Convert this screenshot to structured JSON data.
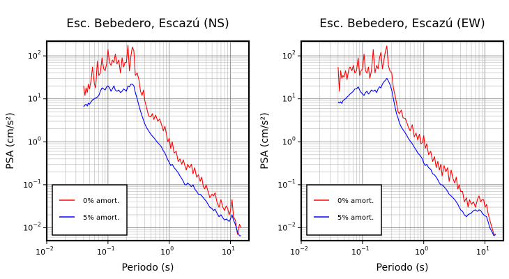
{
  "chart_data": [
    {
      "type": "line",
      "title": "Esc. Bebedero, Escazú (NS)",
      "xlabel": "Periodo (s)",
      "ylabel": "PSA (cm/s²)",
      "xscale": "log",
      "yscale": "log",
      "xlim": [
        0.01,
        20
      ],
      "ylim": [
        0.005,
        220
      ],
      "xticks": [
        {
          "base": "10",
          "exp": "−2"
        },
        {
          "base": "10",
          "exp": "−1"
        },
        {
          "base": "10",
          "exp": "0"
        },
        {
          "base": "10",
          "exp": "1"
        }
      ],
      "yticks": [
        {
          "base": "10",
          "exp": "−2"
        },
        {
          "base": "10",
          "exp": "−1"
        },
        {
          "base": "10",
          "exp": "0"
        },
        {
          "base": "10",
          "exp": "1"
        },
        {
          "base": "10",
          "exp": "2"
        }
      ],
      "grid": true,
      "legend_position": "bottom-left",
      "series": [
        {
          "name": "0% amort.",
          "color": "#ff0000",
          "x": [
            0.04,
            0.042,
            0.044,
            0.046,
            0.048,
            0.05,
            0.053,
            0.056,
            0.06,
            0.063,
            0.067,
            0.071,
            0.075,
            0.08,
            0.085,
            0.09,
            0.095,
            0.1,
            0.106,
            0.112,
            0.118,
            0.125,
            0.132,
            0.14,
            0.15,
            0.16,
            0.17,
            0.18,
            0.19,
            0.2,
            0.212,
            0.224,
            0.237,
            0.25,
            0.265,
            0.28,
            0.3,
            0.32,
            0.34,
            0.36,
            0.38,
            0.4,
            0.43,
            0.46,
            0.5,
            0.53,
            0.56,
            0.6,
            0.65,
            0.7,
            0.75,
            0.8,
            0.85,
            0.9,
            0.95,
            1.0,
            1.06,
            1.12,
            1.2,
            1.3,
            1.4,
            1.5,
            1.6,
            1.7,
            1.8,
            1.9,
            2.0,
            2.15,
            2.3,
            2.45,
            2.6,
            2.8,
            3.0,
            3.2,
            3.4,
            3.6,
            3.8,
            4.0,
            4.3,
            4.6,
            5.0,
            5.3,
            5.6,
            6.0,
            6.5,
            7.0,
            7.5,
            8.0,
            8.5,
            9.0,
            9.5,
            10.0,
            10.6,
            11.2,
            12.0,
            13.0,
            14.0,
            15.0
          ],
          "y": [
            20,
            12,
            18,
            14,
            22,
            17,
            27,
            55,
            22,
            18,
            75,
            35,
            40,
            90,
            50,
            45,
            65,
            140,
            70,
            60,
            80,
            70,
            110,
            65,
            80,
            40,
            90,
            55,
            70,
            70,
            180,
            45,
            100,
            160,
            130,
            35,
            40,
            28,
            15,
            12,
            16,
            9,
            6,
            4,
            3.8,
            4.5,
            3.3,
            4.2,
            3.0,
            3.4,
            2.5,
            1.8,
            2.3,
            1.5,
            1.0,
            1.2,
            0.7,
            1.0,
            0.55,
            0.6,
            0.35,
            0.4,
            0.3,
            0.38,
            0.28,
            0.22,
            0.3,
            0.25,
            0.3,
            0.18,
            0.25,
            0.15,
            0.17,
            0.12,
            0.15,
            0.09,
            0.08,
            0.1,
            0.07,
            0.05,
            0.06,
            0.055,
            0.065,
            0.04,
            0.03,
            0.045,
            0.03,
            0.025,
            0.032,
            0.028,
            0.02,
            0.025,
            0.045,
            0.018,
            0.015,
            0.007,
            0.012,
            0.01
          ]
        },
        {
          "name": "5% amort.",
          "color": "#0000ff",
          "x": [
            0.04,
            0.042,
            0.044,
            0.046,
            0.048,
            0.05,
            0.053,
            0.056,
            0.06,
            0.063,
            0.067,
            0.071,
            0.075,
            0.08,
            0.085,
            0.09,
            0.095,
            0.1,
            0.106,
            0.112,
            0.118,
            0.125,
            0.132,
            0.14,
            0.15,
            0.16,
            0.17,
            0.18,
            0.19,
            0.2,
            0.212,
            0.224,
            0.237,
            0.25,
            0.265,
            0.28,
            0.3,
            0.32,
            0.34,
            0.36,
            0.38,
            0.4,
            0.43,
            0.46,
            0.5,
            0.53,
            0.56,
            0.6,
            0.65,
            0.7,
            0.75,
            0.8,
            0.85,
            0.9,
            0.95,
            1.0,
            1.06,
            1.12,
            1.2,
            1.3,
            1.4,
            1.5,
            1.6,
            1.7,
            1.8,
            1.9,
            2.0,
            2.15,
            2.3,
            2.45,
            2.6,
            2.8,
            3.0,
            3.2,
            3.4,
            3.6,
            3.8,
            4.0,
            4.3,
            4.6,
            5.0,
            5.3,
            5.6,
            6.0,
            6.5,
            7.0,
            7.5,
            8.0,
            8.5,
            9.0,
            9.5,
            10.0,
            10.6,
            11.2,
            12.0,
            13.0,
            14.0,
            15.0
          ],
          "y": [
            6.5,
            7.2,
            7.5,
            6.8,
            8,
            7.5,
            8.5,
            9.5,
            10,
            10.5,
            11,
            12,
            15,
            18,
            17,
            16,
            19,
            20,
            18,
            15,
            17,
            20,
            16,
            15,
            16,
            14,
            15,
            17,
            16,
            15,
            20,
            19,
            22,
            22,
            20,
            14,
            10,
            7,
            5.2,
            4.0,
            3.2,
            2.6,
            2.1,
            1.8,
            1.5,
            1.35,
            1.25,
            1.1,
            0.95,
            0.85,
            0.75,
            0.62,
            0.55,
            0.45,
            0.38,
            0.33,
            0.28,
            0.3,
            0.25,
            0.22,
            0.19,
            0.16,
            0.14,
            0.12,
            0.1,
            0.1,
            0.11,
            0.1,
            0.09,
            0.1,
            0.08,
            0.07,
            0.06,
            0.06,
            0.055,
            0.05,
            0.045,
            0.042,
            0.035,
            0.03,
            0.028,
            0.025,
            0.027,
            0.022,
            0.018,
            0.02,
            0.017,
            0.015,
            0.016,
            0.015,
            0.014,
            0.016,
            0.02,
            0.015,
            0.012,
            0.008,
            0.0065,
            0.0065
          ]
        }
      ]
    },
    {
      "type": "line",
      "title": "Esc. Bebedero, Escazú (EW)",
      "xlabel": "Periodo (s)",
      "ylabel": "PSA (cm/s²)",
      "xscale": "log",
      "yscale": "log",
      "xlim": [
        0.01,
        20
      ],
      "ylim": [
        0.005,
        220
      ],
      "xticks": [
        {
          "base": "10",
          "exp": "−2"
        },
        {
          "base": "10",
          "exp": "−1"
        },
        {
          "base": "10",
          "exp": "0"
        },
        {
          "base": "10",
          "exp": "1"
        }
      ],
      "yticks": [
        {
          "base": "10",
          "exp": "−2"
        },
        {
          "base": "10",
          "exp": "−1"
        },
        {
          "base": "10",
          "exp": "0"
        },
        {
          "base": "10",
          "exp": "1"
        },
        {
          "base": "10",
          "exp": "2"
        }
      ],
      "grid": true,
      "legend_position": "bottom-left",
      "series": [
        {
          "name": "0% amort.",
          "color": "#ff0000",
          "x": [
            0.04,
            0.042,
            0.044,
            0.046,
            0.048,
            0.05,
            0.053,
            0.056,
            0.06,
            0.063,
            0.067,
            0.071,
            0.075,
            0.08,
            0.085,
            0.09,
            0.095,
            0.1,
            0.106,
            0.112,
            0.118,
            0.125,
            0.132,
            0.14,
            0.15,
            0.16,
            0.17,
            0.18,
            0.19,
            0.2,
            0.212,
            0.224,
            0.237,
            0.25,
            0.265,
            0.28,
            0.3,
            0.32,
            0.34,
            0.36,
            0.38,
            0.4,
            0.43,
            0.46,
            0.5,
            0.53,
            0.56,
            0.6,
            0.65,
            0.7,
            0.75,
            0.8,
            0.85,
            0.9,
            0.95,
            1.0,
            1.06,
            1.12,
            1.2,
            1.3,
            1.4,
            1.5,
            1.6,
            1.7,
            1.8,
            1.9,
            2.0,
            2.15,
            2.3,
            2.45,
            2.6,
            2.8,
            3.0,
            3.2,
            3.4,
            3.6,
            3.8,
            4.0,
            4.3,
            4.6,
            5.0,
            5.3,
            5.6,
            6.0,
            6.5,
            7.0,
            7.5,
            8.0,
            8.5,
            9.0,
            9.5,
            10.0,
            10.6,
            11.2,
            12.0,
            13.0,
            14.0,
            15.0
          ],
          "y": [
            55,
            15,
            45,
            30,
            35,
            32,
            45,
            28,
            50,
            55,
            45,
            60,
            40,
            45,
            90,
            35,
            45,
            50,
            110,
            45,
            40,
            55,
            30,
            45,
            140,
            40,
            60,
            50,
            90,
            120,
            50,
            80,
            130,
            170,
            60,
            45,
            40,
            18,
            12,
            8,
            5,
            4.5,
            5.5,
            3.6,
            3.5,
            2.8,
            2.2,
            1.8,
            2.5,
            1.3,
            1.6,
            1.1,
            1.5,
            0.9,
            0.95,
            1.4,
            0.7,
            0.9,
            0.5,
            0.6,
            0.35,
            0.45,
            0.25,
            0.35,
            0.22,
            0.3,
            0.16,
            0.28,
            0.2,
            0.25,
            0.12,
            0.22,
            0.14,
            0.11,
            0.15,
            0.08,
            0.1,
            0.07,
            0.07,
            0.04,
            0.05,
            0.03,
            0.045,
            0.035,
            0.04,
            0.03,
            0.045,
            0.055,
            0.04,
            0.045,
            0.045,
            0.03,
            0.035,
            0.022,
            0.015,
            0.01,
            0.007,
            0.007
          ]
        },
        {
          "name": "5% amort.",
          "color": "#0000ff",
          "x": [
            0.04,
            0.042,
            0.044,
            0.046,
            0.048,
            0.05,
            0.053,
            0.056,
            0.06,
            0.063,
            0.067,
            0.071,
            0.075,
            0.08,
            0.085,
            0.09,
            0.095,
            0.1,
            0.106,
            0.112,
            0.118,
            0.125,
            0.132,
            0.14,
            0.15,
            0.16,
            0.17,
            0.18,
            0.19,
            0.2,
            0.212,
            0.224,
            0.237,
            0.25,
            0.265,
            0.28,
            0.3,
            0.32,
            0.34,
            0.36,
            0.38,
            0.4,
            0.43,
            0.46,
            0.5,
            0.53,
            0.56,
            0.6,
            0.65,
            0.7,
            0.75,
            0.8,
            0.85,
            0.9,
            0.95,
            1.0,
            1.06,
            1.12,
            1.2,
            1.3,
            1.4,
            1.5,
            1.6,
            1.7,
            1.8,
            1.9,
            2.0,
            2.15,
            2.3,
            2.45,
            2.6,
            2.8,
            3.0,
            3.2,
            3.4,
            3.6,
            3.8,
            4.0,
            4.3,
            4.6,
            5.0,
            5.3,
            5.6,
            6.0,
            6.5,
            7.0,
            7.5,
            8.0,
            8.5,
            9.0,
            9.5,
            10.0,
            10.6,
            11.2,
            12.0,
            13.0,
            14.0,
            15.0
          ],
          "y": [
            8.5,
            8.0,
            8.5,
            7.8,
            9,
            9.5,
            10,
            11,
            12,
            13,
            14,
            15,
            17,
            17,
            19,
            16,
            14,
            13,
            12,
            14,
            15,
            13,
            14,
            16,
            15,
            16,
            14,
            17,
            19,
            18,
            22,
            25,
            27,
            30,
            26,
            22,
            16,
            10,
            6.5,
            4.5,
            3.6,
            2.8,
            2.2,
            1.9,
            1.6,
            1.4,
            1.2,
            1.05,
            0.9,
            0.75,
            0.65,
            0.55,
            0.5,
            0.45,
            0.4,
            0.32,
            0.28,
            0.3,
            0.25,
            0.23,
            0.18,
            0.17,
            0.15,
            0.13,
            0.11,
            0.1,
            0.1,
            0.09,
            0.08,
            0.07,
            0.06,
            0.055,
            0.05,
            0.045,
            0.04,
            0.035,
            0.03,
            0.026,
            0.024,
            0.02,
            0.018,
            0.02,
            0.021,
            0.022,
            0.025,
            0.026,
            0.024,
            0.026,
            0.025,
            0.022,
            0.02,
            0.019,
            0.018,
            0.014,
            0.01,
            0.008,
            0.0065,
            0.007
          ]
        }
      ]
    }
  ]
}
